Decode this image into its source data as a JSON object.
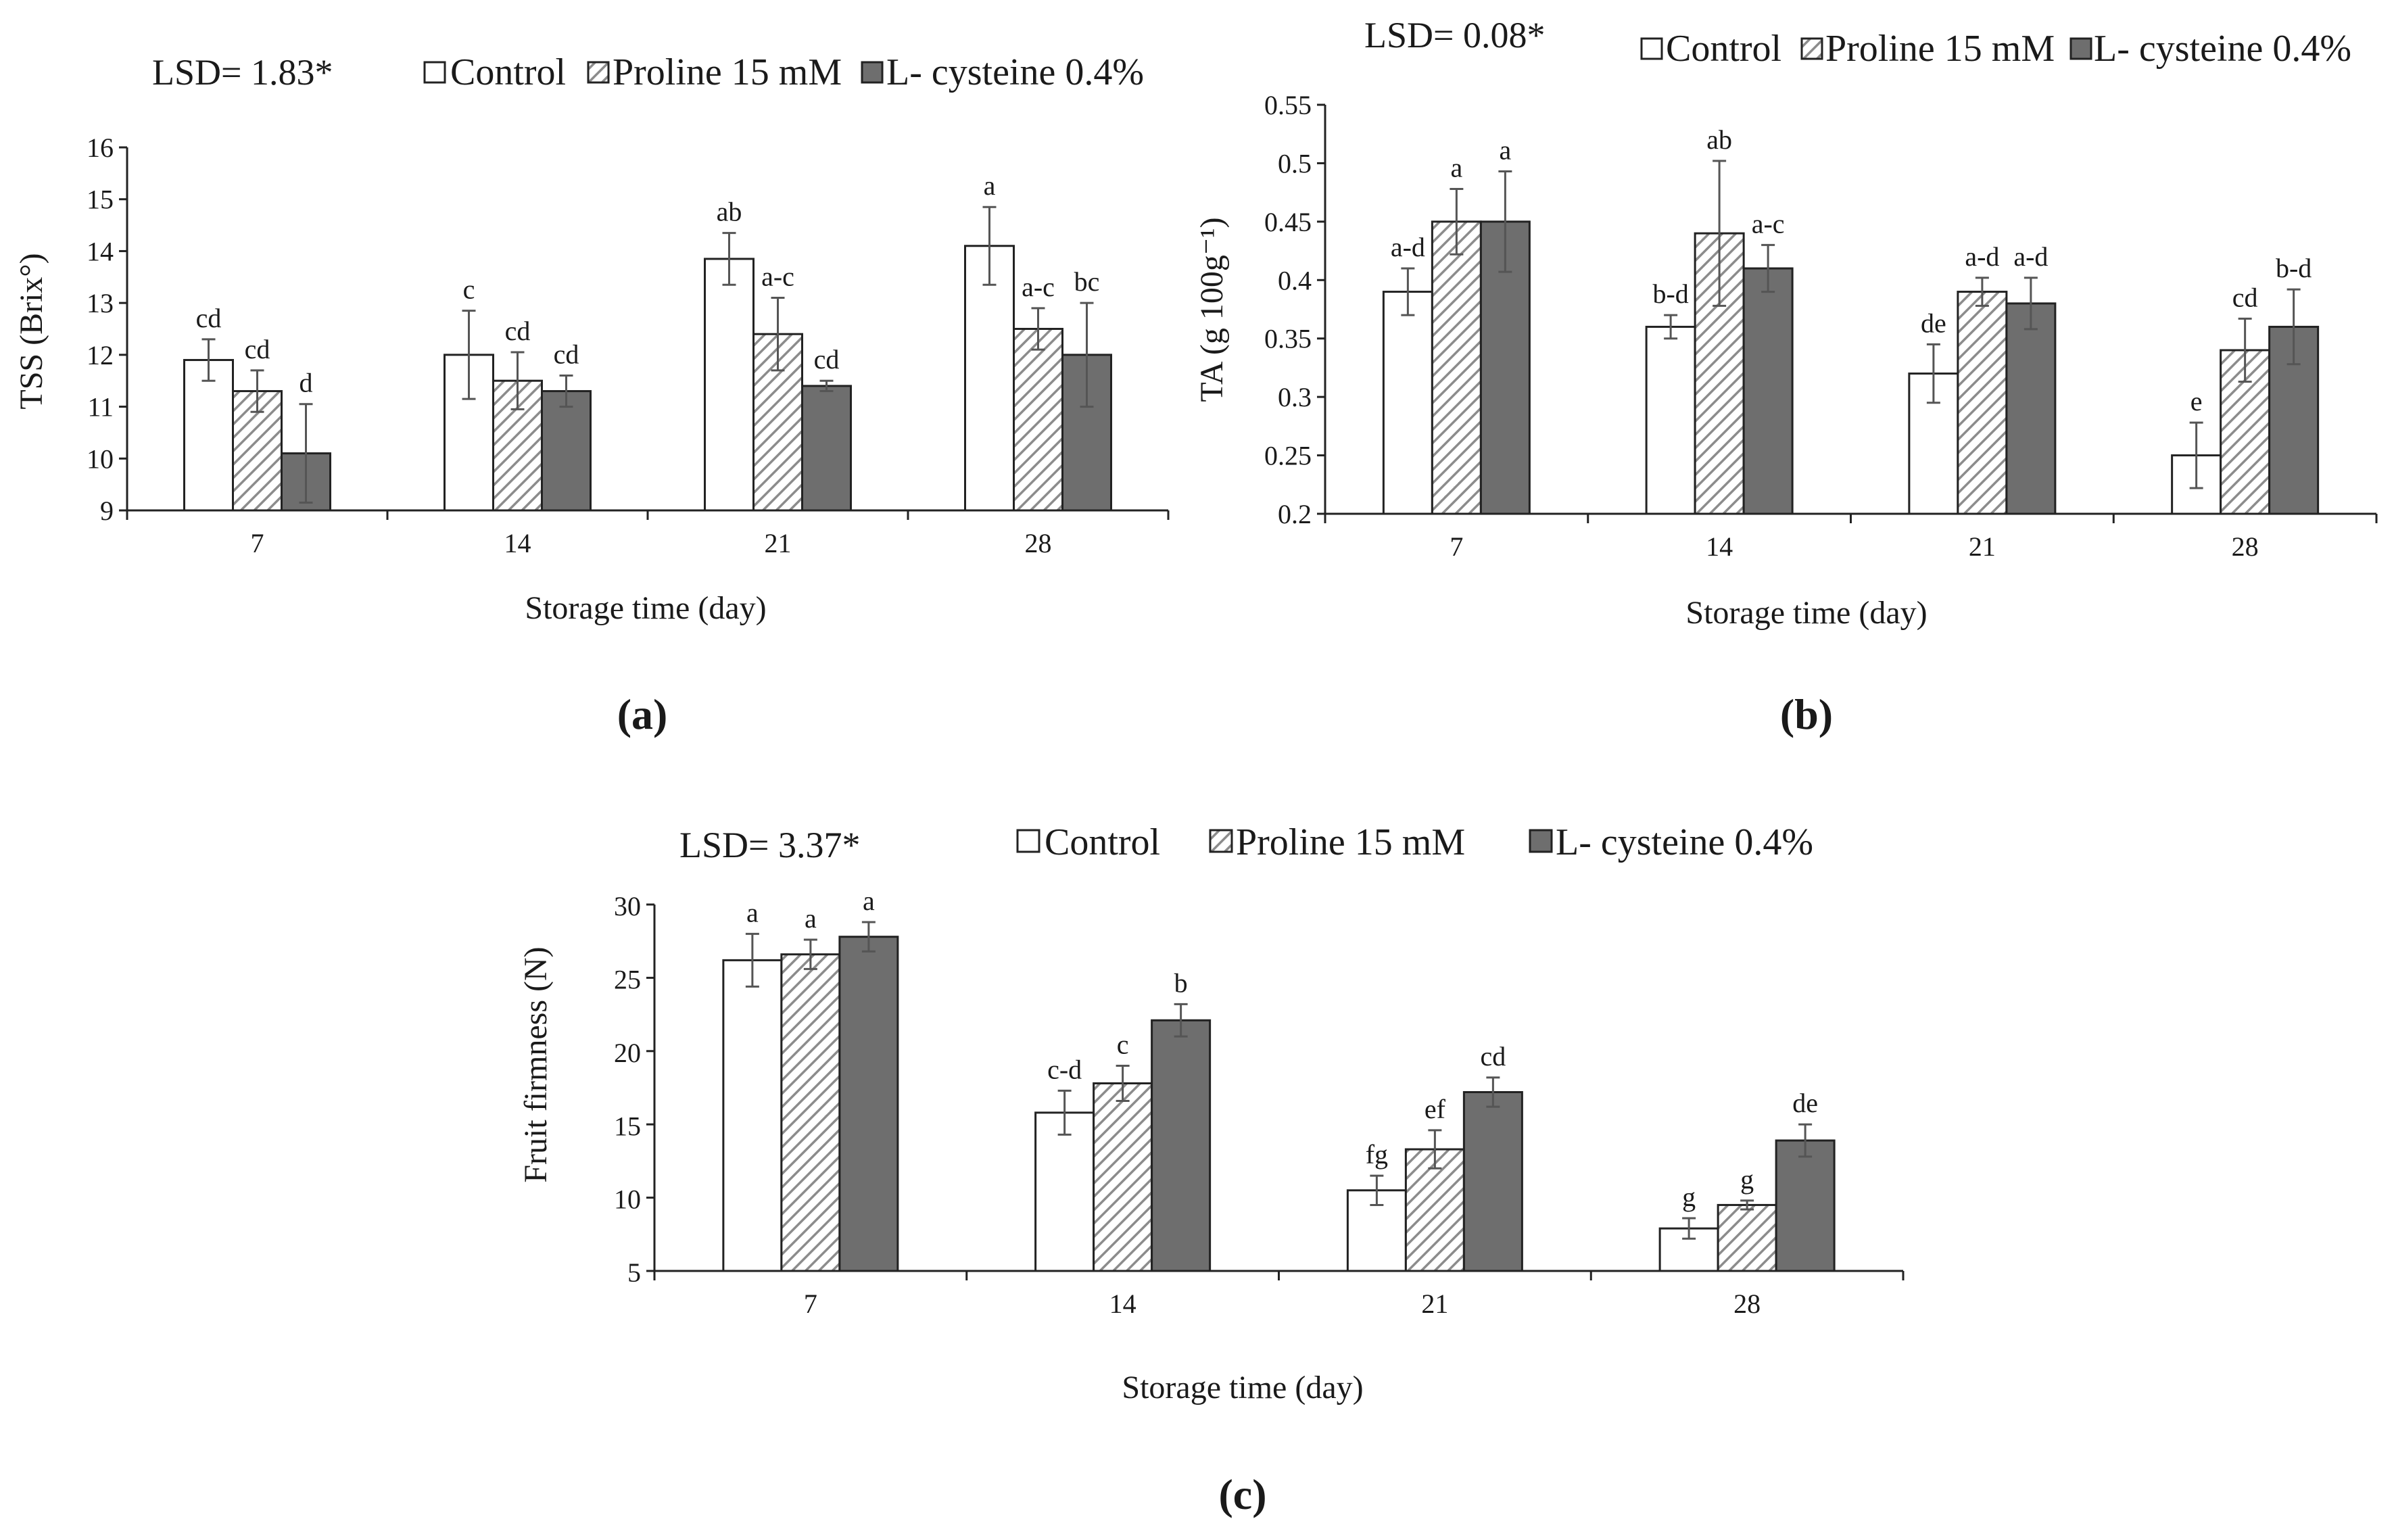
{
  "series_names": [
    "Control",
    "Proline 15 mM",
    "L- cysteine 0.4%"
  ],
  "colors": {
    "control": "#ffffff",
    "cysteine": "#6e6e6e",
    "stroke": "#222222",
    "hatch": "#8c8c8c"
  },
  "chart_data": [
    {
      "type": "bar",
      "title": "",
      "caption": "(a)",
      "lsd": "LSD= 1.83*",
      "xlabel": "Storage  time (day)",
      "ylabel": "TSS (Brix°)",
      "categories": [
        "7",
        "14",
        "21",
        "28"
      ],
      "ylim": [
        9,
        16
      ],
      "yticks": [
        9,
        10,
        11,
        12,
        13,
        14,
        15,
        16
      ],
      "tick_labels": [
        "9",
        "10",
        "11",
        "12",
        "13",
        "14",
        "15",
        "16"
      ],
      "series": [
        {
          "name": "Control",
          "values": [
            11.9,
            12.0,
            13.85,
            14.1
          ],
          "errors": [
            0.4,
            0.85,
            0.5,
            0.75
          ],
          "letters": [
            "cd",
            "c",
            "ab",
            "a"
          ]
        },
        {
          "name": "Proline 15 mM",
          "values": [
            11.3,
            11.5,
            12.4,
            12.5
          ],
          "errors": [
            0.4,
            0.55,
            0.7,
            0.4
          ],
          "letters": [
            "cd",
            "cd",
            "a-c",
            "a-c"
          ]
        },
        {
          "name": "L- cysteine 0.4%",
          "values": [
            10.1,
            11.3,
            11.4,
            12.0
          ],
          "errors": [
            0.95,
            0.3,
            0.1,
            1.0
          ],
          "letters": [
            "d",
            "cd",
            "cd",
            "bc"
          ]
        }
      ]
    },
    {
      "type": "bar",
      "title": "",
      "caption": "(b)",
      "lsd": "LSD= 0.08*",
      "xlabel": "Storage  time (day)",
      "ylabel": "TA (g 100g⁻¹)",
      "categories": [
        "7",
        "14",
        "21",
        "28"
      ],
      "ylim": [
        0.2,
        0.55
      ],
      "yticks": [
        0.2,
        0.25,
        0.3,
        0.35,
        0.4,
        0.45,
        0.5,
        0.55
      ],
      "tick_labels": [
        "0.2",
        "0.25",
        "0.3",
        "0.35",
        "0.4",
        "0.45",
        "0.5",
        "0.55"
      ],
      "series": [
        {
          "name": "Control",
          "values": [
            0.39,
            0.36,
            0.32,
            0.25
          ],
          "errors": [
            0.02,
            0.01,
            0.025,
            0.028
          ],
          "letters": [
            "a-d",
            "b-d",
            "de",
            "e"
          ]
        },
        {
          "name": "Proline 15 mM",
          "values": [
            0.45,
            0.44,
            0.39,
            0.34
          ],
          "errors": [
            0.028,
            0.062,
            0.012,
            0.027
          ],
          "letters": [
            "a",
            "ab",
            "a-d",
            "cd"
          ]
        },
        {
          "name": "L- cysteine 0.4%",
          "values": [
            0.45,
            0.41,
            0.38,
            0.36
          ],
          "errors": [
            0.043,
            0.02,
            0.022,
            0.032
          ],
          "letters": [
            "a",
            "a-c",
            "a-d",
            "b-d"
          ]
        }
      ]
    },
    {
      "type": "bar",
      "title": "",
      "caption": "(c)",
      "lsd": "LSD= 3.37*",
      "xlabel": "Storage  time (day)",
      "ylabel": "Fruit firmness (N)",
      "categories": [
        "7",
        "14",
        "21",
        "28"
      ],
      "ylim": [
        5,
        30
      ],
      "yticks": [
        5,
        10,
        15,
        20,
        25,
        30
      ],
      "tick_labels": [
        "5",
        "10",
        "15",
        "20",
        "25",
        "30"
      ],
      "series": [
        {
          "name": "Control",
          "values": [
            26.2,
            15.8,
            10.5,
            7.9
          ],
          "errors": [
            1.8,
            1.5,
            1.0,
            0.7
          ],
          "letters": [
            "a",
            "c-d",
            "fg",
            "g"
          ]
        },
        {
          "name": "Proline 15 mM",
          "values": [
            26.6,
            17.8,
            13.3,
            9.5
          ],
          "errors": [
            1.0,
            1.2,
            1.3,
            0.3
          ],
          "letters": [
            "a",
            "c",
            "ef",
            "g"
          ]
        },
        {
          "name": "L- cysteine 0.4%",
          "values": [
            27.8,
            22.1,
            17.2,
            13.9
          ],
          "errors": [
            1.0,
            1.1,
            1.0,
            1.1
          ],
          "letters": [
            "a",
            "b",
            "cd",
            "de"
          ]
        }
      ]
    }
  ]
}
